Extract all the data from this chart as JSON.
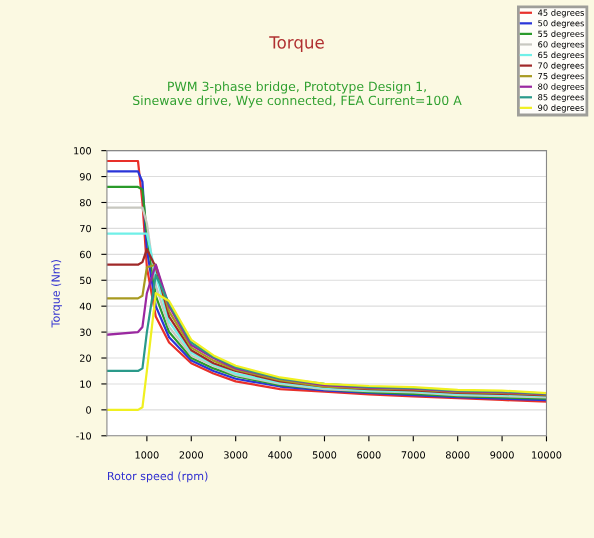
{
  "chart_data": {
    "type": "line",
    "title": "Torque",
    "subtitle": "PWM 3-phase bridge, Prototype Design 1,\nSinewave drive, Wye connected, FEA Current=100 A",
    "xlabel": "Rotor speed (rpm)",
    "ylabel": "Torque (Nm)",
    "x": [
      100,
      800,
      900,
      1000,
      1200,
      1500,
      2000,
      2500,
      3000,
      4000,
      5000,
      6000,
      7000,
      8000,
      9000,
      10000
    ],
    "series": [
      {
        "name": "45 degrees",
        "color": "#e8302a",
        "values": [
          96,
          96,
          80,
          55,
          36,
          26,
          18,
          14,
          11,
          8,
          7,
          6,
          5.2,
          4.5,
          3.8,
          3.2
        ]
      },
      {
        "name": "50 degrees",
        "color": "#2a35d8",
        "values": [
          92,
          92,
          88,
          62,
          40,
          28,
          19,
          15,
          12,
          9,
          7.5,
          6.5,
          5.7,
          4.9,
          4.3,
          3.8
        ]
      },
      {
        "name": "55 degrees",
        "color": "#2a9a2a",
        "values": [
          86,
          86,
          85,
          68,
          44,
          30,
          20,
          16,
          13,
          9.5,
          8,
          6.8,
          6.2,
          5.3,
          4.8,
          4.3
        ]
      },
      {
        "name": "60 degrees",
        "color": "#c8c8c0",
        "values": [
          78,
          78,
          78,
          72,
          48,
          32,
          21,
          17,
          13.5,
          10,
          8,
          7.2,
          6.7,
          5.7,
          5.3,
          4.8
        ]
      },
      {
        "name": "65 degrees",
        "color": "#70f0e8",
        "values": [
          68,
          68,
          68,
          68,
          52,
          34,
          22,
          17.5,
          14,
          10.5,
          8.5,
          7.5,
          7.1,
          6.1,
          5.8,
          5.3
        ]
      },
      {
        "name": "70 degrees",
        "color": "#a02828",
        "values": [
          56,
          56,
          57,
          62,
          55,
          36,
          23,
          18,
          15,
          11,
          9,
          8,
          7.5,
          6.5,
          6.2,
          5.6
        ]
      },
      {
        "name": "75 degrees",
        "color": "#a89a20",
        "values": [
          43,
          43,
          44,
          55,
          56,
          38,
          24,
          19,
          15.5,
          11.5,
          9,
          8.3,
          7.9,
          6.8,
          6.5,
          5.9
        ]
      },
      {
        "name": "80 degrees",
        "color": "#9a28a0",
        "values": [
          29,
          30,
          32,
          45,
          56,
          40,
          25,
          20,
          16,
          12,
          9.5,
          8.6,
          8.2,
          7.1,
          6.8,
          6.1
        ]
      },
      {
        "name": "85 degrees",
        "color": "#2a9a8a",
        "values": [
          15,
          15,
          16,
          30,
          52,
          41,
          26,
          20.5,
          16.5,
          12,
          10,
          8.9,
          8.5,
          7.4,
          7.1,
          6.3
        ]
      },
      {
        "name": "90 degrees",
        "color": "#f0f020",
        "values": [
          0,
          0,
          1,
          15,
          45,
          42,
          27,
          21,
          17,
          12.5,
          10,
          9.2,
          8.8,
          7.7,
          7.4,
          6.5
        ]
      }
    ],
    "xlim": [
      100,
      10000
    ],
    "xticks": [
      1000,
      2000,
      3000,
      4000,
      5000,
      6000,
      7000,
      8000,
      9000,
      10000
    ],
    "ylim": [
      -10,
      100
    ],
    "yticks": [
      -10,
      0,
      10,
      20,
      30,
      40,
      50,
      60,
      70,
      80,
      90,
      100
    ],
    "grid": "y",
    "legend": "top right",
    "marker": "none",
    "line_style": "solid"
  }
}
